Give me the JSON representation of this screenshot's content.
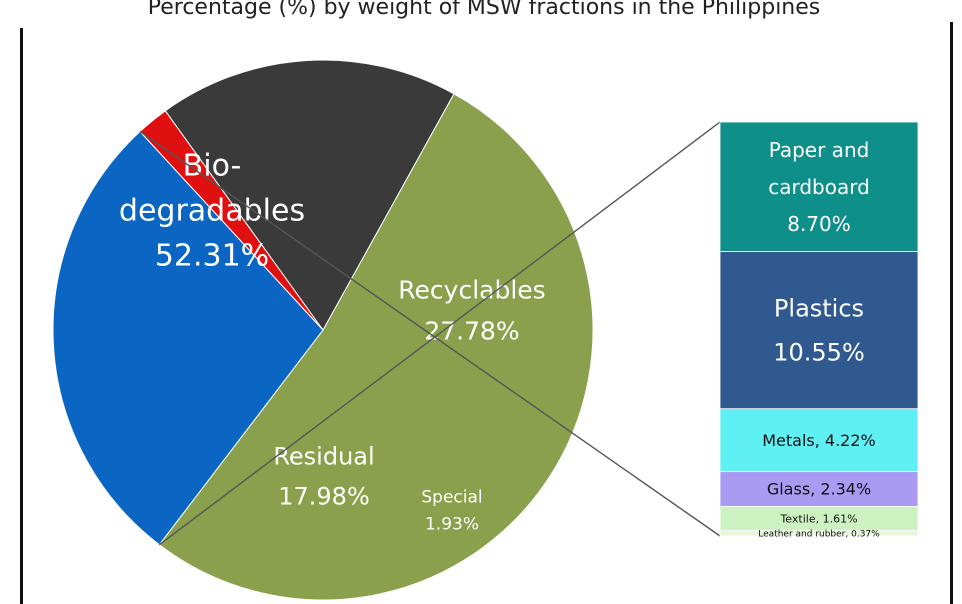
{
  "chart_data": {
    "type": "pie",
    "title": "Percentage (%) by weight of MSW fractions in the Philippines",
    "pie": {
      "slices": [
        {
          "name": "Bio-degradables",
          "label_lines": [
            "Bio-",
            "degradables",
            "52.31%"
          ],
          "value": 52.31,
          "color": "#8aa04d"
        },
        {
          "name": "Recyclables",
          "label_lines": [
            "Recyclables",
            "27.78%"
          ],
          "value": 27.78,
          "color": "#0a66c2"
        },
        {
          "name": "Special",
          "label_lines": [
            "Special",
            "1.93%"
          ],
          "value": 1.93,
          "color": "#e01010"
        },
        {
          "name": "Residual",
          "label_lines": [
            "Residual",
            "17.98%"
          ],
          "value": 17.98,
          "color": "#3a3a3a"
        }
      ]
    },
    "breakdown": {
      "of": "Recyclables",
      "segments": [
        {
          "name": "Paper and cardboard",
          "label_lines": [
            "Paper and",
            "cardboard",
            "8.70%"
          ],
          "value": 8.7,
          "color": "#0f8f8a",
          "text_color": "#ffffff"
        },
        {
          "name": "Plastics",
          "label_lines": [
            "Plastics",
            "10.55%"
          ],
          "value": 10.55,
          "color": "#30598f",
          "text_color": "#ffffff"
        },
        {
          "name": "Metals",
          "label_lines": [
            "Metals, 4.22%"
          ],
          "value": 4.22,
          "color": "#5ff0f4",
          "text_color": "#111111"
        },
        {
          "name": "Glass",
          "label_lines": [
            "Glass, 2.34%"
          ],
          "value": 2.34,
          "color": "#a99af2",
          "text_color": "#111111"
        },
        {
          "name": "Textile",
          "label_lines": [
            "Textile, 1.61%"
          ],
          "value": 1.61,
          "color": "#cdf2c2",
          "text_color": "#111111"
        },
        {
          "name": "Leather and rubber",
          "label_lines": [
            "Leather and rubber, 0.37%"
          ],
          "value": 0.37,
          "color": "#e7f7db",
          "text_color": "#111111"
        }
      ]
    }
  }
}
